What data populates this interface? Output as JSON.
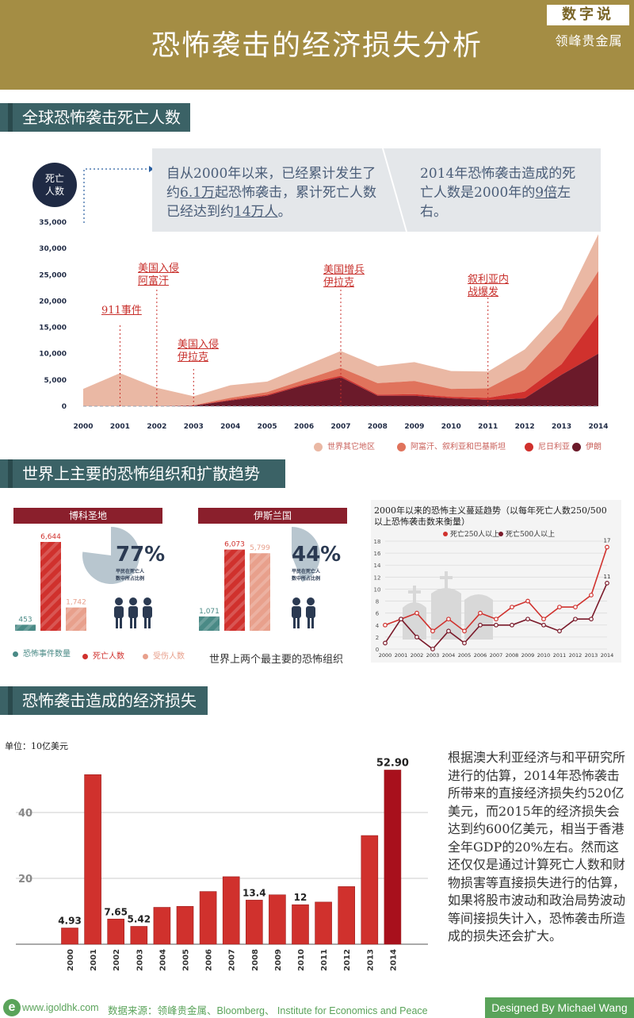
{
  "header": {
    "title": "恐怖袭击的经济损失分析",
    "brand": "数字说",
    "brand_sub": "领峰贵金属"
  },
  "section1": {
    "title": "全球恐怖袭击死亡人数",
    "badge": "死亡\n人数",
    "badge_line1": "死亡",
    "badge_line2": "人数",
    "callout_left_parts": [
      "自从2000年以来，已经累计发生了约",
      "6.1万",
      "起恐怖袭击，累计死亡人数已经达到约",
      "14万人",
      "。"
    ],
    "callout_right_parts": [
      "2014年恐怖袭击造成的死亡人数是2000年的",
      "9倍",
      "左右。"
    ],
    "events": [
      {
        "label": "911事件"
      },
      {
        "label": "美国入侵\n阿富汗",
        "l1": "美国入侵",
        "l2": "阿富汗"
      },
      {
        "label": "美国入侵\n伊拉克",
        "l1": "美国入侵",
        "l2": "伊拉克"
      },
      {
        "label": "美国增兵\n伊拉克",
        "l1": "美国增兵",
        "l2": "伊拉克"
      },
      {
        "label": "叙利亚内\n战爆发",
        "l1": "叙利亚内",
        "l2": "战爆发"
      }
    ]
  },
  "section2": {
    "title": "世界上主要的恐怖组织和扩散趋势",
    "orgs": [
      {
        "name": "博科圣地",
        "pct": "77%",
        "pct_text1": "平民在死亡人",
        "pct_text2": "数中所占比例"
      },
      {
        "name": "伊斯兰国",
        "pct": "44%",
        "pct_text1": "平民在死亡人",
        "pct_text2": "数中所占比例"
      }
    ],
    "legend": [
      "恐怖事件数量",
      "死亡人数",
      "受伤人数"
    ],
    "caption": "世界上两个最主要的恐怖组织",
    "line_title1": "2000年以来的恐怖主义蔓延趋势（以每年死亡人数250/500",
    "line_title2": "以上恐怖袭击数来衡量）"
  },
  "section3": {
    "title": "恐怖袭击造成的经济损失",
    "unit": "单位：10亿美元",
    "text": "根据澳大利亚经济与和平研究所进行的估算，2014年恐怖袭击所带来的直接经济损失约520亿美元，而2015年的经济损失会达到约600亿美元，相当于香港全年GDP的20%左右。然而这还仅仅是通过计算死亡人数和财物损害等直接损失进行的估算，如果将股市波动和政治局势波动等间接损失计入，恐怖袭击所造成的损失还会扩大。"
  },
  "footer": {
    "logo_letter": "e",
    "url": "www.igoldhk.com",
    "source": "数据来源：领峰贵金属、Bloomberg、 Institute for Economics and Peace",
    "designer": "Designed By Michael Wang"
  },
  "colors": {
    "header": "#a48d44",
    "section": "#3b6266",
    "dark_red": "#8a1f2c",
    "red": "#d0312d",
    "salmon": "#e8a08c",
    "teal": "#4a8a86"
  },
  "chart_data": [
    {
      "type": "area",
      "title": "全球恐怖袭击死亡人数",
      "ylabel": "死亡人数",
      "x": [
        2000,
        2001,
        2002,
        2003,
        2004,
        2005,
        2006,
        2007,
        2008,
        2009,
        2010,
        2011,
        2012,
        2013,
        2014
      ],
      "ylim": [
        0,
        35000
      ],
      "yticks": [
        0,
        5000,
        10000,
        15000,
        20000,
        25000,
        30000,
        35000
      ],
      "stacked": true,
      "series": [
        {
          "name": "伊朗",
          "color": "#6b1a2a",
          "values": [
            0,
            0,
            0,
            100,
            1100,
            2000,
            4000,
            5500,
            2000,
            2000,
            1500,
            1200,
            1500,
            6000,
            10000
          ]
        },
        {
          "name": "尼日利亚",
          "color": "#d0312d",
          "values": [
            0,
            0,
            0,
            50,
            150,
            200,
            200,
            300,
            200,
            300,
            300,
            400,
            1300,
            2000,
            7500
          ]
        },
        {
          "name": "阿富汗、叙利亚和巴基斯坦",
          "color": "#e0735c",
          "values": [
            0,
            0,
            0,
            50,
            350,
            500,
            800,
            1500,
            2200,
            2500,
            1500,
            1800,
            4200,
            6600,
            8200
          ]
        },
        {
          "name": "世界其它地区",
          "color": "#eab8a4",
          "values": [
            3300,
            6300,
            3500,
            1700,
            2400,
            2000,
            2600,
            3200,
            3200,
            3600,
            3400,
            3200,
            3800,
            3800,
            7000
          ]
        }
      ],
      "legend": [
        "世界其它地区",
        "阿富汗、叙利亚和巴基斯坦",
        "尼日利亚",
        "伊朗"
      ],
      "annotations": [
        {
          "year": 2001,
          "text": "911事件"
        },
        {
          "year": 2002,
          "text": "美国入侵阿富汗"
        },
        {
          "year": 2003,
          "text": "美国入侵伊拉克"
        },
        {
          "year": 2007,
          "text": "美国增兵伊拉克"
        },
        {
          "year": 2011,
          "text": "叙利亚内战爆发"
        }
      ]
    },
    {
      "type": "bar",
      "title": "博科圣地",
      "categories": [
        "恐怖事件数量",
        "死亡人数",
        "受伤人数"
      ],
      "values": [
        453,
        6644,
        1742
      ],
      "data_labels": [
        "453",
        "6,644",
        "1,742"
      ],
      "civilian_share": 77
    },
    {
      "type": "bar",
      "title": "伊斯兰国",
      "categories": [
        "恐怖事件数量",
        "死亡人数",
        "受伤人数"
      ],
      "values": [
        1071,
        6073,
        5799
      ],
      "data_labels": [
        "1,071",
        "6,073",
        "5,799"
      ],
      "civilian_share": 44
    },
    {
      "type": "line",
      "title": "2000年以来的恐怖主义蔓延趋势（以每年死亡人数250/500以上恐怖袭击数来衡量）",
      "x": [
        2000,
        2001,
        2002,
        2003,
        2004,
        2005,
        2006,
        2007,
        2008,
        2009,
        2010,
        2011,
        2012,
        2013,
        2014
      ],
      "ylim": [
        0,
        18
      ],
      "yticks": [
        0,
        2,
        4,
        6,
        8,
        10,
        12,
        14,
        16,
        18
      ],
      "series": [
        {
          "name": "死亡250人以上",
          "color": "#d0312d",
          "values": [
            4,
            5,
            6,
            3,
            5,
            3,
            6,
            5,
            7,
            8,
            5,
            7,
            7,
            9,
            17
          ]
        },
        {
          "name": "死亡500人以上",
          "color": "#7a1a2a",
          "values": [
            1,
            5,
            2,
            0,
            3,
            1,
            4,
            4,
            4,
            5,
            4,
            3,
            5,
            5,
            11
          ]
        }
      ],
      "end_labels": [
        "17",
        "11"
      ]
    },
    {
      "type": "bar",
      "title": "恐怖袭击造成的经济损失",
      "ylabel": "单位：10亿美元",
      "categories": [
        "2000",
        "2001",
        "2002",
        "2003",
        "2004",
        "2005",
        "2006",
        "2007",
        "2008",
        "2009",
        "2010",
        "2011",
        "2012",
        "2013",
        "2014"
      ],
      "values": [
        4.93,
        51.5,
        7.65,
        5.42,
        11.2,
        11.5,
        16.0,
        20.5,
        13.4,
        15.0,
        12.0,
        12.8,
        17.5,
        33.0,
        52.9
      ],
      "data_labels": {
        "2000": "4.93",
        "2002": "7.65",
        "2003": "5.42",
        "2008": "13.4",
        "2010": "12",
        "2014": "52.90"
      },
      "ylim": [
        0,
        55
      ],
      "yticks": [
        20,
        40
      ]
    }
  ]
}
